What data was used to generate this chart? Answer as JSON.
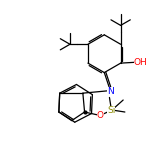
{
  "background_color": "#ffffff",
  "bond_color": "#000000",
  "atom_colors": {
    "O": "#ff0000",
    "N": "#0000ff",
    "Si": "#8b8b00",
    "C": "#000000"
  },
  "figsize": [
    1.52,
    1.52
  ],
  "dpi": 100,
  "lw": 0.9,
  "fontsize": 6.0
}
